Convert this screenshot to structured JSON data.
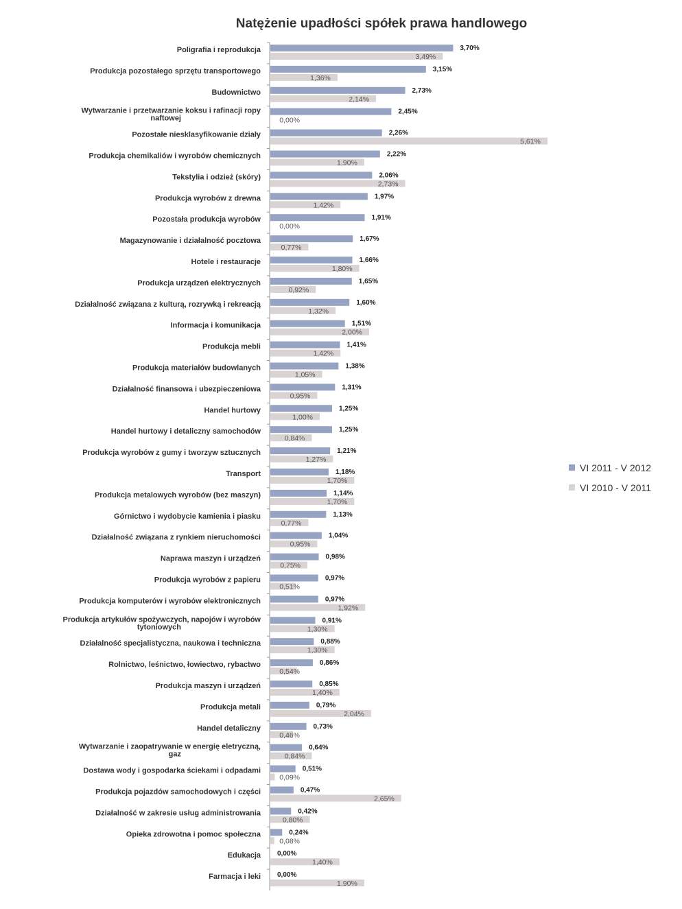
{
  "chart_data": {
    "type": "bar",
    "orientation": "horizontal",
    "title": "Natężenie upadłości spółek prawa handlowego",
    "xlabel": "",
    "ylabel": "",
    "xlim": [
      0,
      5.61
    ],
    "grid": false,
    "legend_position": "right",
    "categories": [
      "Poligrafia i reprodukcja",
      "Produkcja pozostałego sprzętu transportowego",
      "Budownictwo",
      "Wytwarzanie i przetwarzanie koksu i rafinacji ropy naftowej",
      "Pozostałe niesklasyfikowanie działy",
      "Produkcja chemikaliów i wyrobów chemicznych",
      "Tekstylia i odzież (skóry)",
      "Produkcja wyrobów z drewna",
      "Pozostała produkcja wyrobów",
      "Magazynowanie i działalność pocztowa",
      "Hotele i restauracje",
      "Produkcja urządzeń elektrycznych",
      "Działalność związana z kulturą, rozrywką i rekreacją",
      "Informacja i komunikacja",
      "Produkcja mebli",
      "Produkcja materiałów budowlanych",
      "Działalność finansowa i ubezpieczeniowa",
      "Handel hurtowy",
      "Handel hurtowy i detaliczny samochodów",
      "Produkcja wyrobów z gumy i tworzyw sztucznych",
      "Transport",
      "Produkcja metalowych wyrobów (bez maszyn)",
      "Górnictwo i wydobycie kamienia i piasku",
      "Działalność związana z rynkiem nieruchomości",
      "Naprawa maszyn i urządzeń",
      "Produkcja wyrobów z papieru",
      "Produkcja komputerów i wyrobów elektronicznych",
      "Produkcja artykułów spożywczych, napojów i wyrobów tytoniowych",
      "Działalność specjalistyczna, naukowa i techniczna",
      "Rolnictwo, leśnictwo, łowiectwo, rybactwo",
      "Produkcja maszyn i urządzeń",
      "Produkcja metali",
      "Handel detaliczny",
      "Wytwarzanie i zaopatrywanie w energię eletryczną, gaz",
      "Dostawa wody i  gospodarka ściekami i odpadami",
      "Produkcja pojazdów samochodowych i części",
      "Działalność w zakresie usług administrowania",
      "Opieka zdrowotna i pomoc społeczna",
      "Edukacja",
      "Farmacja i leki"
    ],
    "series": [
      {
        "name": "VI 2011 - V 2012",
        "color": "#97a3c2",
        "values": [
          3.7,
          3.15,
          2.73,
          2.45,
          2.26,
          2.22,
          2.06,
          1.97,
          1.91,
          1.67,
          1.66,
          1.65,
          1.6,
          1.51,
          1.41,
          1.38,
          1.31,
          1.25,
          1.25,
          1.21,
          1.18,
          1.14,
          1.13,
          1.04,
          0.98,
          0.97,
          0.97,
          0.91,
          0.88,
          0.86,
          0.85,
          0.79,
          0.73,
          0.64,
          0.51,
          0.47,
          0.42,
          0.24,
          0.0,
          0.0
        ],
        "labels": [
          "3,70%",
          "3,15%",
          "2,73%",
          "2,45%",
          "2,26%",
          "2,22%",
          "2,06%",
          "1,97%",
          "1,91%",
          "1,67%",
          "1,66%",
          "1,65%",
          "1,60%",
          "1,51%",
          "1,41%",
          "1,38%",
          "1,31%",
          "1,25%",
          "1,25%",
          "1,21%",
          "1,18%",
          "1,14%",
          "1,13%",
          "1,04%",
          "0,98%",
          "0,97%",
          "0,97%",
          "0,91%",
          "0,88%",
          "0,86%",
          "0,85%",
          "0,79%",
          "0,73%",
          "0,64%",
          "0,51%",
          "0,47%",
          "0,42%",
          "0,24%",
          "0,00%",
          "0,00%"
        ]
      },
      {
        "name": "VI 2010 - V 2011",
        "color": "#d9d3d3",
        "values": [
          3.49,
          1.36,
          2.14,
          0.0,
          5.61,
          1.9,
          2.73,
          1.42,
          0.0,
          0.77,
          1.8,
          0.92,
          1.32,
          2.0,
          1.42,
          1.05,
          0.95,
          1.0,
          0.84,
          1.27,
          1.7,
          1.7,
          0.77,
          0.95,
          0.75,
          0.51,
          1.92,
          1.3,
          1.3,
          0.54,
          1.4,
          2.04,
          0.46,
          0.84,
          0.09,
          2.65,
          0.8,
          0.08,
          1.4,
          1.9
        ],
        "labels": [
          "3,49%",
          "1,36%",
          "2,14%",
          "0,00%",
          "5,61%",
          "1,90%",
          "2,73%",
          "1,42%",
          "0,00%",
          "0,77%",
          "1,80%",
          "0,92%",
          "1,32%",
          "2,00%",
          "1,42%",
          "1,05%",
          "0,95%",
          "1,00%",
          "0,84%",
          "1,27%",
          "1,70%",
          "1,70%",
          "0,77%",
          "0,95%",
          "0,75%",
          "0,51%",
          "1,92%",
          "1,30%",
          "1,30%",
          "0,54%",
          "1,40%",
          "2,04%",
          "0,46%",
          "0,84%",
          "0,09%",
          "2,65%",
          "0,80%",
          "0,08%",
          "1,40%",
          "1,90%"
        ]
      }
    ]
  }
}
